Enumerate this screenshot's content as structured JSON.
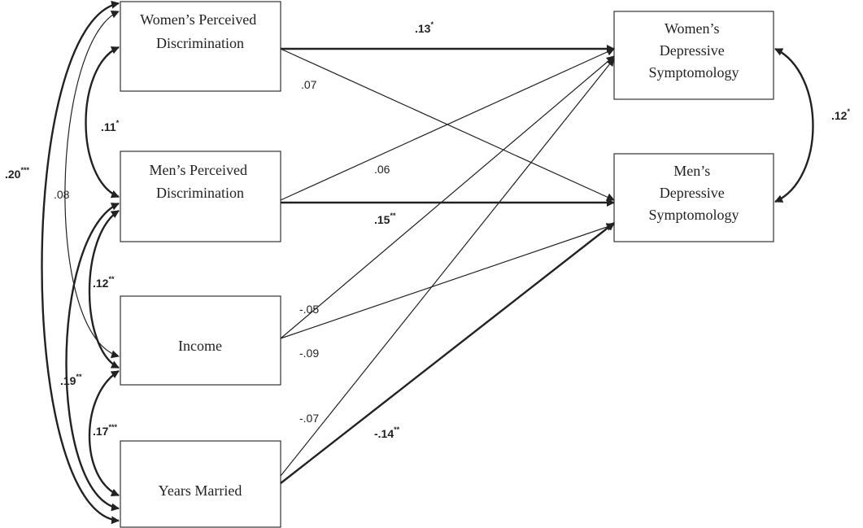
{
  "nodes": {
    "women_disc": {
      "lines": [
        "Women’s Perceived",
        "Discrimination"
      ]
    },
    "men_disc": {
      "lines": [
        "Men’s Perceived",
        "Discrimination"
      ]
    },
    "income": {
      "lines": [
        "Income"
      ]
    },
    "years": {
      "lines": [
        "Years Married"
      ]
    },
    "women_dep": {
      "lines": [
        "Women’s",
        "Depressive",
        "Symptomology"
      ]
    },
    "men_dep": {
      "lines": [
        "Men’s",
        "Depressive",
        "Symptomology"
      ]
    }
  },
  "paths": [
    {
      "id": "wd-wdep",
      "from": "women_disc",
      "to": "women_dep",
      "value": ".13",
      "stars": "*",
      "bold": true
    },
    {
      "id": "wd-mdep",
      "from": "women_disc",
      "to": "men_dep",
      "value": ".07",
      "stars": "",
      "bold": false
    },
    {
      "id": "md-wdep",
      "from": "men_disc",
      "to": "women_dep",
      "value": ".06",
      "stars": "",
      "bold": false
    },
    {
      "id": "md-mdep",
      "from": "men_disc",
      "to": "men_dep",
      "value": ".15",
      "stars": "**",
      "bold": true
    },
    {
      "id": "inc-wdep",
      "from": "income",
      "to": "women_dep",
      "value": "-.09",
      "stars": "",
      "bold": false
    },
    {
      "id": "inc-mdep",
      "from": "income",
      "to": "men_dep",
      "value": "-.05",
      "stars": "",
      "bold": false
    },
    {
      "id": "yrs-wdep",
      "from": "years",
      "to": "women_dep",
      "value": "-.07",
      "stars": "",
      "bold": false
    },
    {
      "id": "yrs-mdep",
      "from": "years",
      "to": "men_dep",
      "value": "-.14",
      "stars": "**",
      "bold": true
    }
  ],
  "covariances": [
    {
      "id": "wd-md",
      "value": ".11",
      "stars": "*",
      "bold": true
    },
    {
      "id": "md-inc",
      "value": ".12",
      "stars": "**",
      "bold": true
    },
    {
      "id": "inc-yrs",
      "value": ".17",
      "stars": "***",
      "bold": true
    },
    {
      "id": "md-yrs",
      "value": ".19",
      "stars": "**",
      "bold": true
    },
    {
      "id": "wd-inc",
      "value": ".08",
      "stars": "",
      "bold": false
    },
    {
      "id": "wd-yrs",
      "value": ".20",
      "stars": "***",
      "bold": true
    },
    {
      "id": "wdep-mdep",
      "value": ".12",
      "stars": "*",
      "bold": true
    }
  ]
}
